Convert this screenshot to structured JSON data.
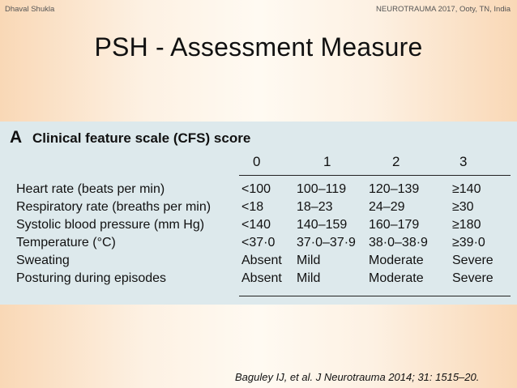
{
  "header": {
    "author": "Dhaval Shukla",
    "conference": "NEUROTRAUMA 2017, Ooty, TN, India"
  },
  "slide": {
    "title": "PSH - Assessment Measure"
  },
  "figure": {
    "panel_letter": "A",
    "panel_title": "Clinical feature scale (CFS) score",
    "scores": [
      "0",
      "1",
      "2",
      "3"
    ],
    "rows": [
      {
        "label": "Heart rate (beats per min)",
        "values": [
          "<100",
          "100–119",
          "120–139",
          "≥140"
        ]
      },
      {
        "label": "Respiratory rate (breaths per min)",
        "values": [
          "<18",
          "18–23",
          "24–29",
          "≥30"
        ]
      },
      {
        "label": "Systolic blood pressure (mm Hg)",
        "values": [
          "<140",
          "140–159",
          "160–179",
          "≥180"
        ]
      },
      {
        "label": "Temperature (°C)",
        "values": [
          "<37·0",
          "37·0–37·9",
          "38·0–38·9",
          "≥39·0"
        ]
      },
      {
        "label": "Sweating",
        "values": [
          "Absent",
          "Mild",
          "Moderate",
          "Severe"
        ]
      },
      {
        "label": "Posturing during episodes",
        "values": [
          "Absent",
          "Mild",
          "Moderate",
          "Severe"
        ]
      }
    ]
  },
  "citation": "Baguley IJ, et al. J Neurotrauma 2014; 31: 1515–20."
}
